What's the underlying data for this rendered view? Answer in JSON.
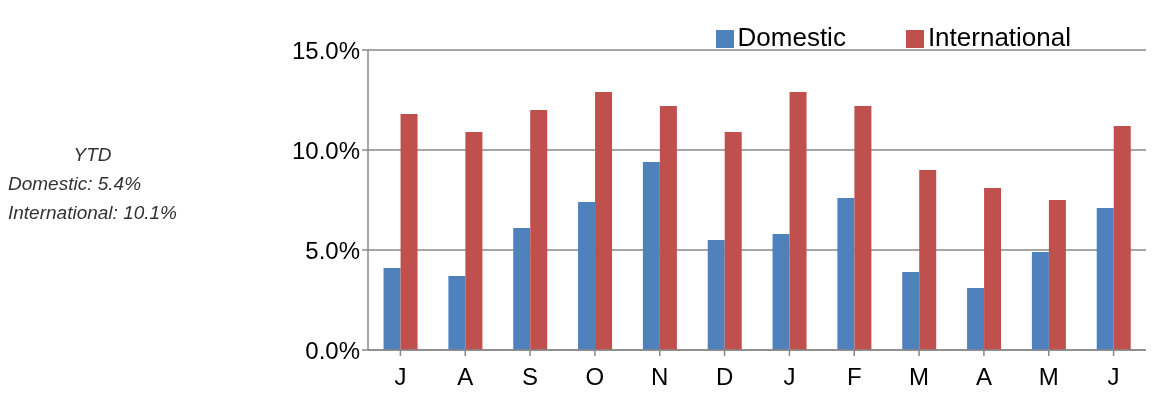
{
  "chart_data": {
    "type": "bar",
    "categories": [
      "J",
      "A",
      "S",
      "O",
      "N",
      "D",
      "J",
      "F",
      "M",
      "A",
      "M",
      "J"
    ],
    "series": [
      {
        "name": "Domestic",
        "color": "#4f81bd",
        "values": [
          4.1,
          3.7,
          6.1,
          7.4,
          9.4,
          5.5,
          5.8,
          7.6,
          3.9,
          3.1,
          4.9,
          7.1
        ]
      },
      {
        "name": "International",
        "color": "#c0504d",
        "values": [
          11.8,
          10.9,
          12.0,
          12.9,
          12.2,
          10.9,
          12.9,
          12.2,
          9.0,
          8.1,
          7.5,
          11.2
        ]
      }
    ],
    "ylim": [
      0,
      15
    ],
    "yticks": [
      {
        "value": 0,
        "label": "0.0%"
      },
      {
        "value": 5,
        "label": "5.0%"
      },
      {
        "value": 10,
        "label": "10.0%"
      },
      {
        "value": 15,
        "label": "15.0%"
      }
    ],
    "grid": "y",
    "legend": "top right",
    "annotations": [
      "YTD",
      "Domestic: 5.4%",
      "International: 10.1%"
    ]
  }
}
